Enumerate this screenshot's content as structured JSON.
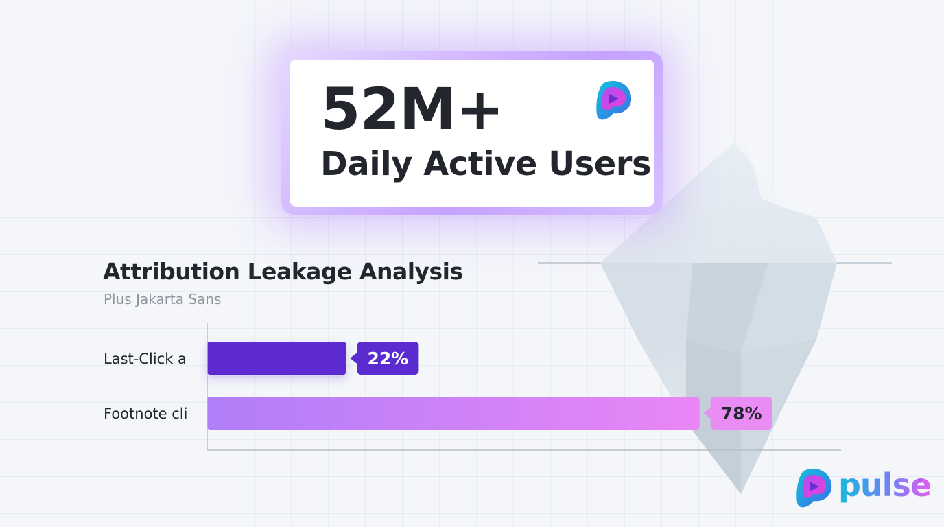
{
  "stat": {
    "value": "52M+",
    "label": "Daily Active Users"
  },
  "chart": {
    "title": "Attribution Leakage Analysis",
    "subtitle": "Plus Jakarta Sans"
  },
  "chart_data": {
    "type": "bar",
    "orientation": "horizontal",
    "title": "Attribution Leakage Analysis",
    "subtitle": "Plus Jakarta Sans",
    "categories": [
      "Last-Click a",
      "Footnote cli"
    ],
    "values": [
      22,
      78
    ],
    "value_labels": [
      "22%",
      "78%"
    ],
    "unit": "%",
    "xlim": [
      0,
      100
    ],
    "grid": false,
    "legend": "none"
  },
  "colors": {
    "bar_1": "#5b2ad0",
    "bar_2_start": "#b07ef8",
    "bar_2_end": "#ea86f6",
    "label_1_bg": "#5a2bcf",
    "label_2_bg": "#e98cf3",
    "text_dark": "#23262d",
    "brand_teal": "#1cb8db",
    "brand_purple": "#c44ff0"
  },
  "icons": {
    "card_logo": "pulse-logo-icon",
    "brand_logo": "pulse-logo-icon",
    "background": "iceberg-illustration"
  },
  "brand": {
    "name": "pulse",
    "registered": "®"
  }
}
